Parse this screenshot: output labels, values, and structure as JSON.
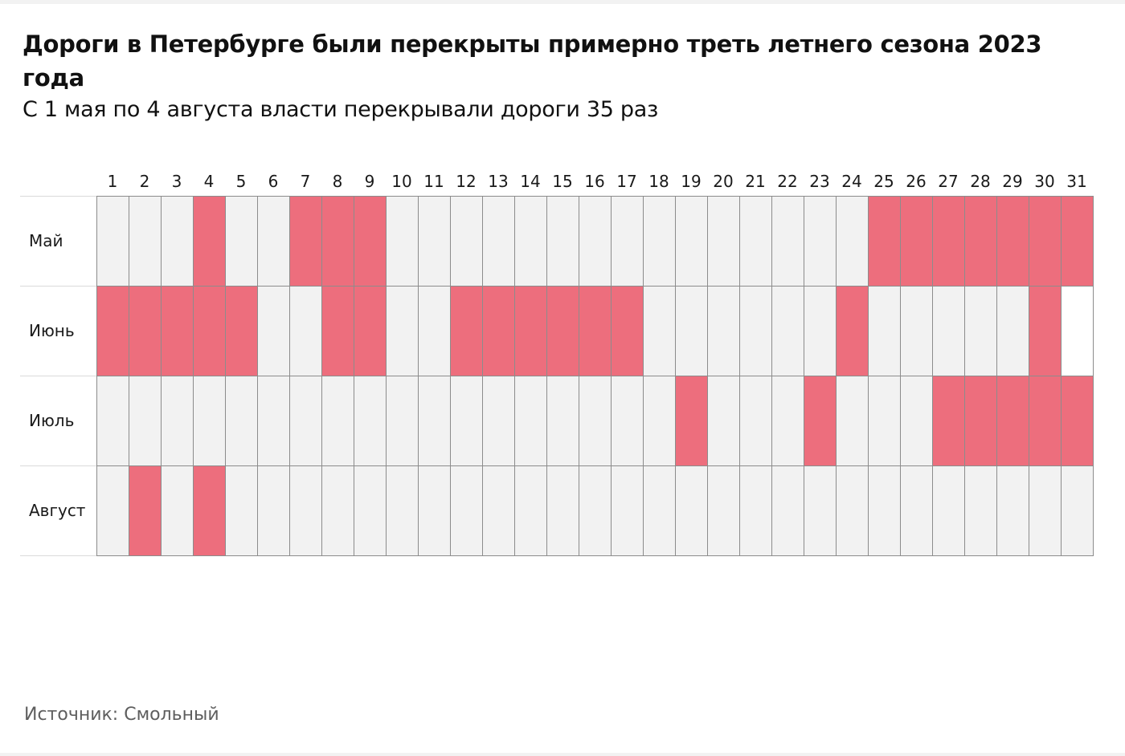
{
  "title": "Дороги в Петербурге были перекрыты примерно треть летнего сезона 2023 года",
  "subtitle": "С 1 мая по 4 августа власти перекрывали дороги 35 раз",
  "source": "Источник: Смольный",
  "colors": {
    "closed": "#ed6e7d",
    "open": "#f2f2f2",
    "empty": "#ffffff",
    "cell_border": "#8c8c8c",
    "rule": "#dadada"
  },
  "chart_data": {
    "type": "heatmap",
    "title": "Дороги в Петербургe были перекрыты примерно треть летнего сезона 2023 года",
    "x_categories": [
      "1",
      "2",
      "3",
      "4",
      "5",
      "6",
      "7",
      "8",
      "9",
      "10",
      "11",
      "12",
      "13",
      "14",
      "15",
      "16",
      "17",
      "18",
      "19",
      "20",
      "21",
      "22",
      "23",
      "24",
      "25",
      "26",
      "27",
      "28",
      "29",
      "30",
      "31"
    ],
    "y_categories": [
      "Май",
      "Июнь",
      "Июль",
      "Август"
    ],
    "value_legend": {
      "1": "closed",
      "0": "open",
      "null": "no such date"
    },
    "values": [
      [
        0,
        0,
        0,
        1,
        0,
        0,
        1,
        1,
        1,
        0,
        0,
        0,
        0,
        0,
        0,
        0,
        0,
        0,
        0,
        0,
        0,
        0,
        0,
        0,
        1,
        1,
        1,
        1,
        1,
        1,
        1
      ],
      [
        1,
        1,
        1,
        1,
        1,
        0,
        0,
        1,
        1,
        0,
        0,
        1,
        1,
        1,
        1,
        1,
        1,
        0,
        0,
        0,
        0,
        0,
        0,
        1,
        0,
        0,
        0,
        0,
        0,
        1,
        null
      ],
      [
        0,
        0,
        0,
        0,
        0,
        0,
        0,
        0,
        0,
        0,
        0,
        0,
        0,
        0,
        0,
        0,
        0,
        0,
        1,
        0,
        0,
        0,
        1,
        0,
        0,
        0,
        1,
        1,
        1,
        1,
        1
      ],
      [
        0,
        1,
        0,
        1,
        0,
        0,
        0,
        0,
        0,
        0,
        0,
        0,
        0,
        0,
        0,
        0,
        0,
        0,
        0,
        0,
        0,
        0,
        0,
        0,
        0,
        0,
        0,
        0,
        0,
        0,
        0
      ]
    ]
  }
}
